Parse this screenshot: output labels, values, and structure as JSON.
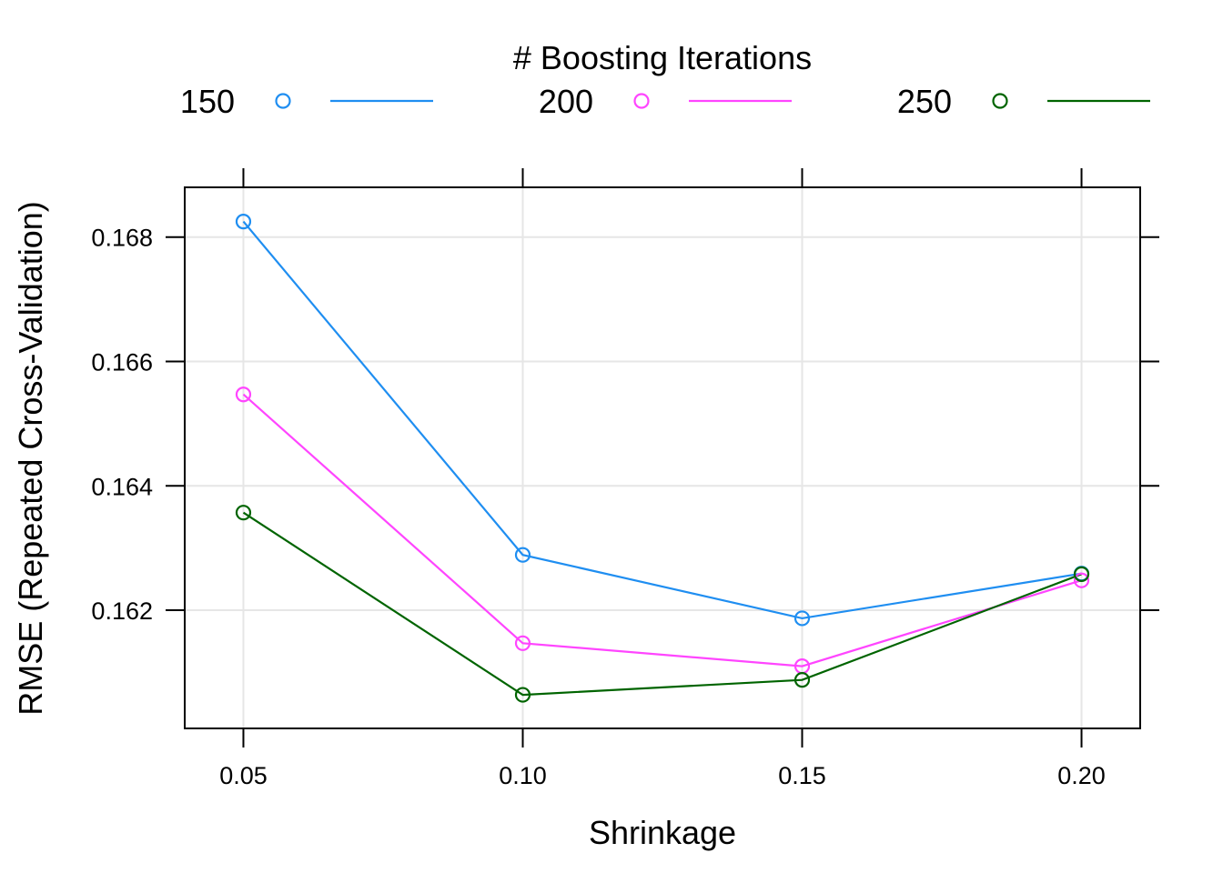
{
  "chart_data": {
    "type": "line",
    "title": "",
    "legend": {
      "title": "# Boosting Iterations",
      "placement": "top"
    },
    "xlabel": "Shrinkage",
    "ylabel": "RMSE (Repeated Cross-Validation)",
    "x": [
      0.05,
      0.1,
      0.15,
      0.2
    ],
    "x_tick_labels": [
      "0.05",
      "0.10",
      "0.15",
      "0.20"
    ],
    "y_ticks": [
      0.162,
      0.164,
      0.166,
      0.168
    ],
    "y_tick_labels": [
      "0.162",
      "0.164",
      "0.166",
      "0.168"
    ],
    "xlim": [
      0.0395,
      0.2105
    ],
    "ylim": [
      0.1601,
      0.1688
    ],
    "grid": true,
    "series": [
      {
        "name": "150",
        "color": "#1f8ef1",
        "values": [
          0.16825,
          0.16289,
          0.16187,
          0.16259
        ]
      },
      {
        "name": "200",
        "color": "#ff45ff",
        "values": [
          0.16547,
          0.16147,
          0.1611,
          0.16248
        ]
      },
      {
        "name": "250",
        "color": "#006400",
        "values": [
          0.16357,
          0.16064,
          0.16088,
          0.16258
        ]
      }
    ]
  }
}
